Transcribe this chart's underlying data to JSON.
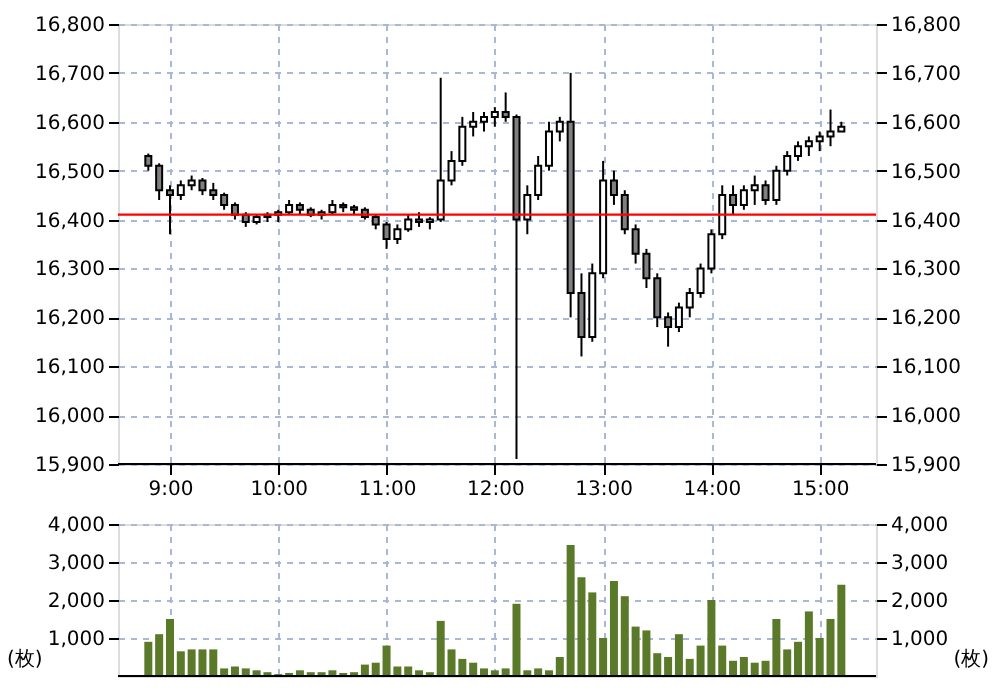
{
  "chart_data": [
    {
      "type": "candlestick",
      "color": "#000000",
      "x": [
        8.8,
        8.9,
        9.0,
        9.1,
        9.2,
        9.3,
        9.4,
        9.5,
        9.6,
        9.7,
        9.8,
        9.9,
        10.0,
        10.1,
        10.2,
        10.3,
        10.4,
        10.5,
        10.6,
        10.7,
        10.8,
        10.9,
        11.0,
        11.1,
        11.2,
        11.3,
        11.4,
        11.5,
        11.6,
        11.7,
        11.8,
        11.9,
        12.0,
        12.1,
        12.2,
        12.3,
        12.4,
        12.5,
        12.6,
        12.7,
        12.8,
        12.9,
        13.0,
        13.1,
        13.2,
        13.3,
        13.4,
        13.5,
        13.6,
        13.7,
        13.8,
        13.9,
        14.0,
        14.1,
        14.2,
        14.3,
        14.4,
        14.5,
        14.6,
        14.7,
        14.8,
        14.9,
        15.0,
        15.1,
        15.2
      ],
      "ohlc": [
        [
          16530,
          16535,
          16500,
          16510
        ],
        [
          16510,
          16515,
          16440,
          16460
        ],
        [
          16460,
          16470,
          16370,
          16450
        ],
        [
          16450,
          16480,
          16440,
          16470
        ],
        [
          16470,
          16490,
          16460,
          16480
        ],
        [
          16480,
          16485,
          16450,
          16460
        ],
        [
          16460,
          16475,
          16440,
          16450
        ],
        [
          16450,
          16455,
          16420,
          16430
        ],
        [
          16430,
          16435,
          16400,
          16410
        ],
        [
          16410,
          16415,
          16385,
          16395
        ],
        [
          16395,
          16410,
          16390,
          16405
        ],
        [
          16405,
          16415,
          16395,
          16410
        ],
        [
          16410,
          16420,
          16395,
          16415
        ],
        [
          16415,
          16440,
          16410,
          16430
        ],
        [
          16430,
          16435,
          16410,
          16420
        ],
        [
          16420,
          16425,
          16405,
          16410
        ],
        [
          16410,
          16420,
          16400,
          16415
        ],
        [
          16415,
          16440,
          16410,
          16430
        ],
        [
          16430,
          16435,
          16415,
          16425
        ],
        [
          16425,
          16430,
          16410,
          16420
        ],
        [
          16420,
          16425,
          16400,
          16405
        ],
        [
          16405,
          16410,
          16380,
          16390
        ],
        [
          16390,
          16395,
          16340,
          16360
        ],
        [
          16360,
          16390,
          16350,
          16380
        ],
        [
          16380,
          16410,
          16375,
          16400
        ],
        [
          16400,
          16415,
          16385,
          16395
        ],
        [
          16395,
          16405,
          16380,
          16400
        ],
        [
          16400,
          16690,
          16395,
          16480
        ],
        [
          16480,
          16540,
          16470,
          16520
        ],
        [
          16520,
          16610,
          16510,
          16590
        ],
        [
          16590,
          16620,
          16570,
          16600
        ],
        [
          16600,
          16620,
          16580,
          16610
        ],
        [
          16610,
          16630,
          16590,
          16620
        ],
        [
          16620,
          16660,
          16600,
          16610
        ],
        [
          16610,
          16615,
          15910,
          16400
        ],
        [
          16400,
          16470,
          16370,
          16450
        ],
        [
          16450,
          16530,
          16440,
          16510
        ],
        [
          16510,
          16600,
          16500,
          16580
        ],
        [
          16580,
          16610,
          16560,
          16600
        ],
        [
          16600,
          16700,
          16200,
          16250
        ],
        [
          16250,
          16290,
          16120,
          16160
        ],
        [
          16160,
          16310,
          16150,
          16290
        ],
        [
          16290,
          16520,
          16280,
          16480
        ],
        [
          16480,
          16500,
          16430,
          16450
        ],
        [
          16450,
          16460,
          16370,
          16380
        ],
        [
          16380,
          16390,
          16310,
          16330
        ],
        [
          16330,
          16340,
          16260,
          16280
        ],
        [
          16280,
          16290,
          16180,
          16200
        ],
        [
          16200,
          16210,
          16140,
          16180
        ],
        [
          16180,
          16230,
          16170,
          16220
        ],
        [
          16220,
          16260,
          16200,
          16250
        ],
        [
          16250,
          16310,
          16240,
          16300
        ],
        [
          16300,
          16380,
          16290,
          16370
        ],
        [
          16370,
          16470,
          16360,
          16450
        ],
        [
          16450,
          16470,
          16410,
          16430
        ],
        [
          16430,
          16470,
          16420,
          16460
        ],
        [
          16460,
          16490,
          16430,
          16470
        ],
        [
          16470,
          16480,
          16430,
          16440
        ],
        [
          16440,
          16510,
          16430,
          16500
        ],
        [
          16500,
          16540,
          16490,
          16530
        ],
        [
          16530,
          16560,
          16520,
          16550
        ],
        [
          16550,
          16570,
          16530,
          16560
        ],
        [
          16560,
          16580,
          16540,
          16570
        ],
        [
          16570,
          16625,
          16550,
          16580
        ],
        [
          16580,
          16600,
          16580,
          16590
        ]
      ],
      "xlim": [
        8.52,
        15.52
      ],
      "xticks": [
        {
          "value": 9,
          "label": "9:00"
        },
        {
          "value": 10,
          "label": "10:00"
        },
        {
          "value": 11,
          "label": "11:00"
        },
        {
          "value": 12,
          "label": "12:00"
        },
        {
          "value": 13,
          "label": "13:00"
        },
        {
          "value": 14,
          "label": "14:00"
        },
        {
          "value": 15,
          "label": "15:00"
        }
      ],
      "ylim": [
        15900,
        16800
      ],
      "yticks": [
        {
          "value": 15900,
          "label": "15,900"
        },
        {
          "value": 16000,
          "label": "16,000"
        },
        {
          "value": 16100,
          "label": "16,100"
        },
        {
          "value": 16200,
          "label": "16,200"
        },
        {
          "value": 16300,
          "label": "16,300"
        },
        {
          "value": 16400,
          "label": "16,400"
        },
        {
          "value": 16500,
          "label": "16,500"
        },
        {
          "value": 16600,
          "label": "16,600"
        },
        {
          "value": 16700,
          "label": "16,700"
        },
        {
          "value": 16800,
          "label": "16,800"
        }
      ],
      "y2lim": [
        15900,
        16800
      ],
      "y2ticks": [
        {
          "value": 15900,
          "label": "15,900"
        },
        {
          "value": 16000,
          "label": "16,000"
        },
        {
          "value": 16100,
          "label": "16,100"
        },
        {
          "value": 16200,
          "label": "16,200"
        },
        {
          "value": 16300,
          "label": "16,300"
        },
        {
          "value": 16400,
          "label": "16,400"
        },
        {
          "value": 16500,
          "label": "16,500"
        },
        {
          "value": 16600,
          "label": "16,600"
        },
        {
          "value": 16700,
          "label": "16,700"
        },
        {
          "value": 16800,
          "label": "16,800"
        }
      ],
      "ref_lines": [
        {
          "axis": "y",
          "value": 16410,
          "color": "#ff0000"
        }
      ],
      "grid": true
    },
    {
      "type": "bar",
      "color": "#5a7a2a",
      "ylabel": "(枚)",
      "y2label": "(枚)",
      "tick_labels": "y",
      "x": [
        8.8,
        8.9,
        9.0,
        9.1,
        9.2,
        9.3,
        9.4,
        9.5,
        9.6,
        9.7,
        9.8,
        9.9,
        10.0,
        10.1,
        10.2,
        10.3,
        10.4,
        10.5,
        10.6,
        10.7,
        10.8,
        10.9,
        11.0,
        11.1,
        11.2,
        11.3,
        11.4,
        11.5,
        11.6,
        11.7,
        11.8,
        11.9,
        12.0,
        12.1,
        12.2,
        12.3,
        12.4,
        12.5,
        12.6,
        12.7,
        12.8,
        12.9,
        13.0,
        13.1,
        13.2,
        13.3,
        13.4,
        13.5,
        13.6,
        13.7,
        13.8,
        13.9,
        14.0,
        14.1,
        14.2,
        14.3,
        14.4,
        14.5,
        14.6,
        14.7,
        14.8,
        14.9,
        15.0,
        15.1,
        15.2
      ],
      "xticks": [
        {
          "value": 9,
          "label": null
        },
        {
          "value": 10,
          "label": null
        },
        {
          "value": 11,
          "label": null
        },
        {
          "value": 12,
          "label": null
        },
        {
          "value": 13,
          "label": null
        },
        {
          "value": 14,
          "label": null
        },
        {
          "value": 15,
          "label": null
        }
      ],
      "values": [
        900,
        1100,
        1500,
        650,
        700,
        700,
        700,
        200,
        250,
        200,
        150,
        100,
        50,
        80,
        150,
        100,
        100,
        150,
        80,
        100,
        300,
        350,
        800,
        250,
        250,
        150,
        100,
        1450,
        700,
        450,
        350,
        200,
        150,
        200,
        1900,
        150,
        200,
        150,
        500,
        3450,
        2600,
        2200,
        1000,
        2500,
        2100,
        1300,
        1200,
        600,
        500,
        1100,
        450,
        800,
        2000,
        800,
        400,
        500,
        350,
        400,
        1500,
        700,
        900,
        1700,
        1000,
        1500,
        2400
      ],
      "xlim": [
        8.52,
        15.52
      ],
      "ylim": [
        0,
        4000
      ],
      "yticks": [
        {
          "value": 1000,
          "label": "1,000"
        },
        {
          "value": 2000,
          "label": "2,000"
        },
        {
          "value": 3000,
          "label": "3,000"
        },
        {
          "value": 4000,
          "label": "4,000"
        }
      ],
      "y2lim": [
        0,
        4000
      ],
      "y2ticks": [
        {
          "value": 1000,
          "label": "1,000"
        },
        {
          "value": 2000,
          "label": "2,000"
        },
        {
          "value": 3000,
          "label": "3,000"
        },
        {
          "value": 4000,
          "label": "4,000"
        }
      ],
      "grid": true
    }
  ]
}
